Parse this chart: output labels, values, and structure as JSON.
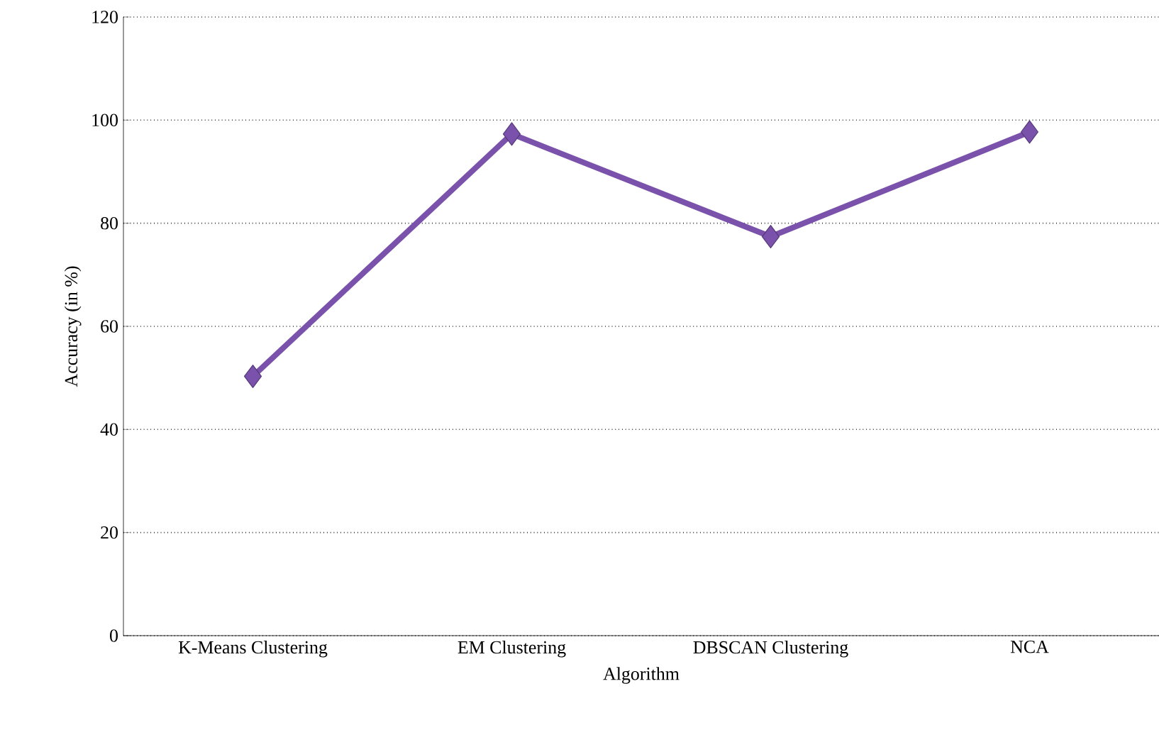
{
  "chart_data": {
    "type": "line",
    "xlabel": "Algorithm",
    "ylabel": "Accuracy (in %)",
    "categories": [
      "K-Means Clustering",
      "EM Clustering",
      "DBSCAN Clustering",
      "NCA"
    ],
    "values": [
      50.3,
      97.3,
      77.4,
      97.7
    ],
    "color": "#7b52ab",
    "ylim": [
      0,
      120
    ],
    "yticks": [
      0,
      20,
      40,
      60,
      80,
      100,
      120
    ],
    "grid": "y",
    "marker": "diamond",
    "line_style": "solid"
  }
}
